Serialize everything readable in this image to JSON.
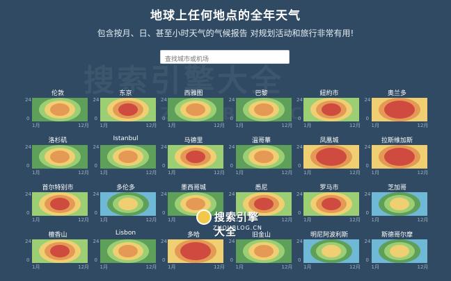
{
  "header": {
    "title": "地球上任何地点的全年天气",
    "subtitle": "包含按月、日、甚至小时天气的气候报告 对规划活动和旅行非常有用!"
  },
  "search": {
    "placeholder": "查找城市或机场"
  },
  "axis": {
    "y_top": "24",
    "y_bottom": "0",
    "x_start": "1月",
    "x_end": "12月"
  },
  "watermark": {
    "main": "搜索引擎大全",
    "sub": "ZHOUBLOG.CN"
  },
  "logo": {
    "brand": "搜索引擎大全",
    "domain": "ZHOUBLOG.CN"
  },
  "colors": {
    "background": "#2f4a62",
    "cold": "#6fb8d6",
    "cool": "#5ea05a",
    "mild": "#9ccf74",
    "warm": "#f0cf73",
    "hot": "#e49a55",
    "very_hot": "#cf4b3f"
  },
  "cities": [
    {
      "name": "伦敦",
      "scheme": "mild"
    },
    {
      "name": "东京",
      "scheme": "warm"
    },
    {
      "name": "西雅图",
      "scheme": "cool"
    },
    {
      "name": "巴黎",
      "scheme": "mild"
    },
    {
      "name": "紐約市",
      "scheme": "warm"
    },
    {
      "name": "奥兰多",
      "scheme": "hot"
    },
    {
      "name": "洛杉矶",
      "scheme": "mild"
    },
    {
      "name": "İstanbul",
      "scheme": "mild"
    },
    {
      "name": "马德里",
      "scheme": "warm"
    },
    {
      "name": "溫哥華",
      "scheme": "cool"
    },
    {
      "name": "凤凰城",
      "scheme": "hot"
    },
    {
      "name": "拉斯维加斯",
      "scheme": "hot"
    },
    {
      "name": "首尔特别市",
      "scheme": "warm"
    },
    {
      "name": "多伦多",
      "scheme": "cold"
    },
    {
      "name": "墨西哥城",
      "scheme": "mild"
    },
    {
      "name": "悉尼",
      "scheme": "warm"
    },
    {
      "name": "罗马市",
      "scheme": "warm"
    },
    {
      "name": "芝加哥",
      "scheme": "cold"
    },
    {
      "name": "檀香山",
      "scheme": "warm"
    },
    {
      "name": "Lisbon",
      "scheme": "mild"
    },
    {
      "name": "多哈",
      "scheme": "hot"
    },
    {
      "name": "旧金山",
      "scheme": "mild"
    },
    {
      "name": "明尼阿波利斯",
      "scheme": "cold"
    },
    {
      "name": "斯德哥尔摩",
      "scheme": "cold"
    }
  ]
}
